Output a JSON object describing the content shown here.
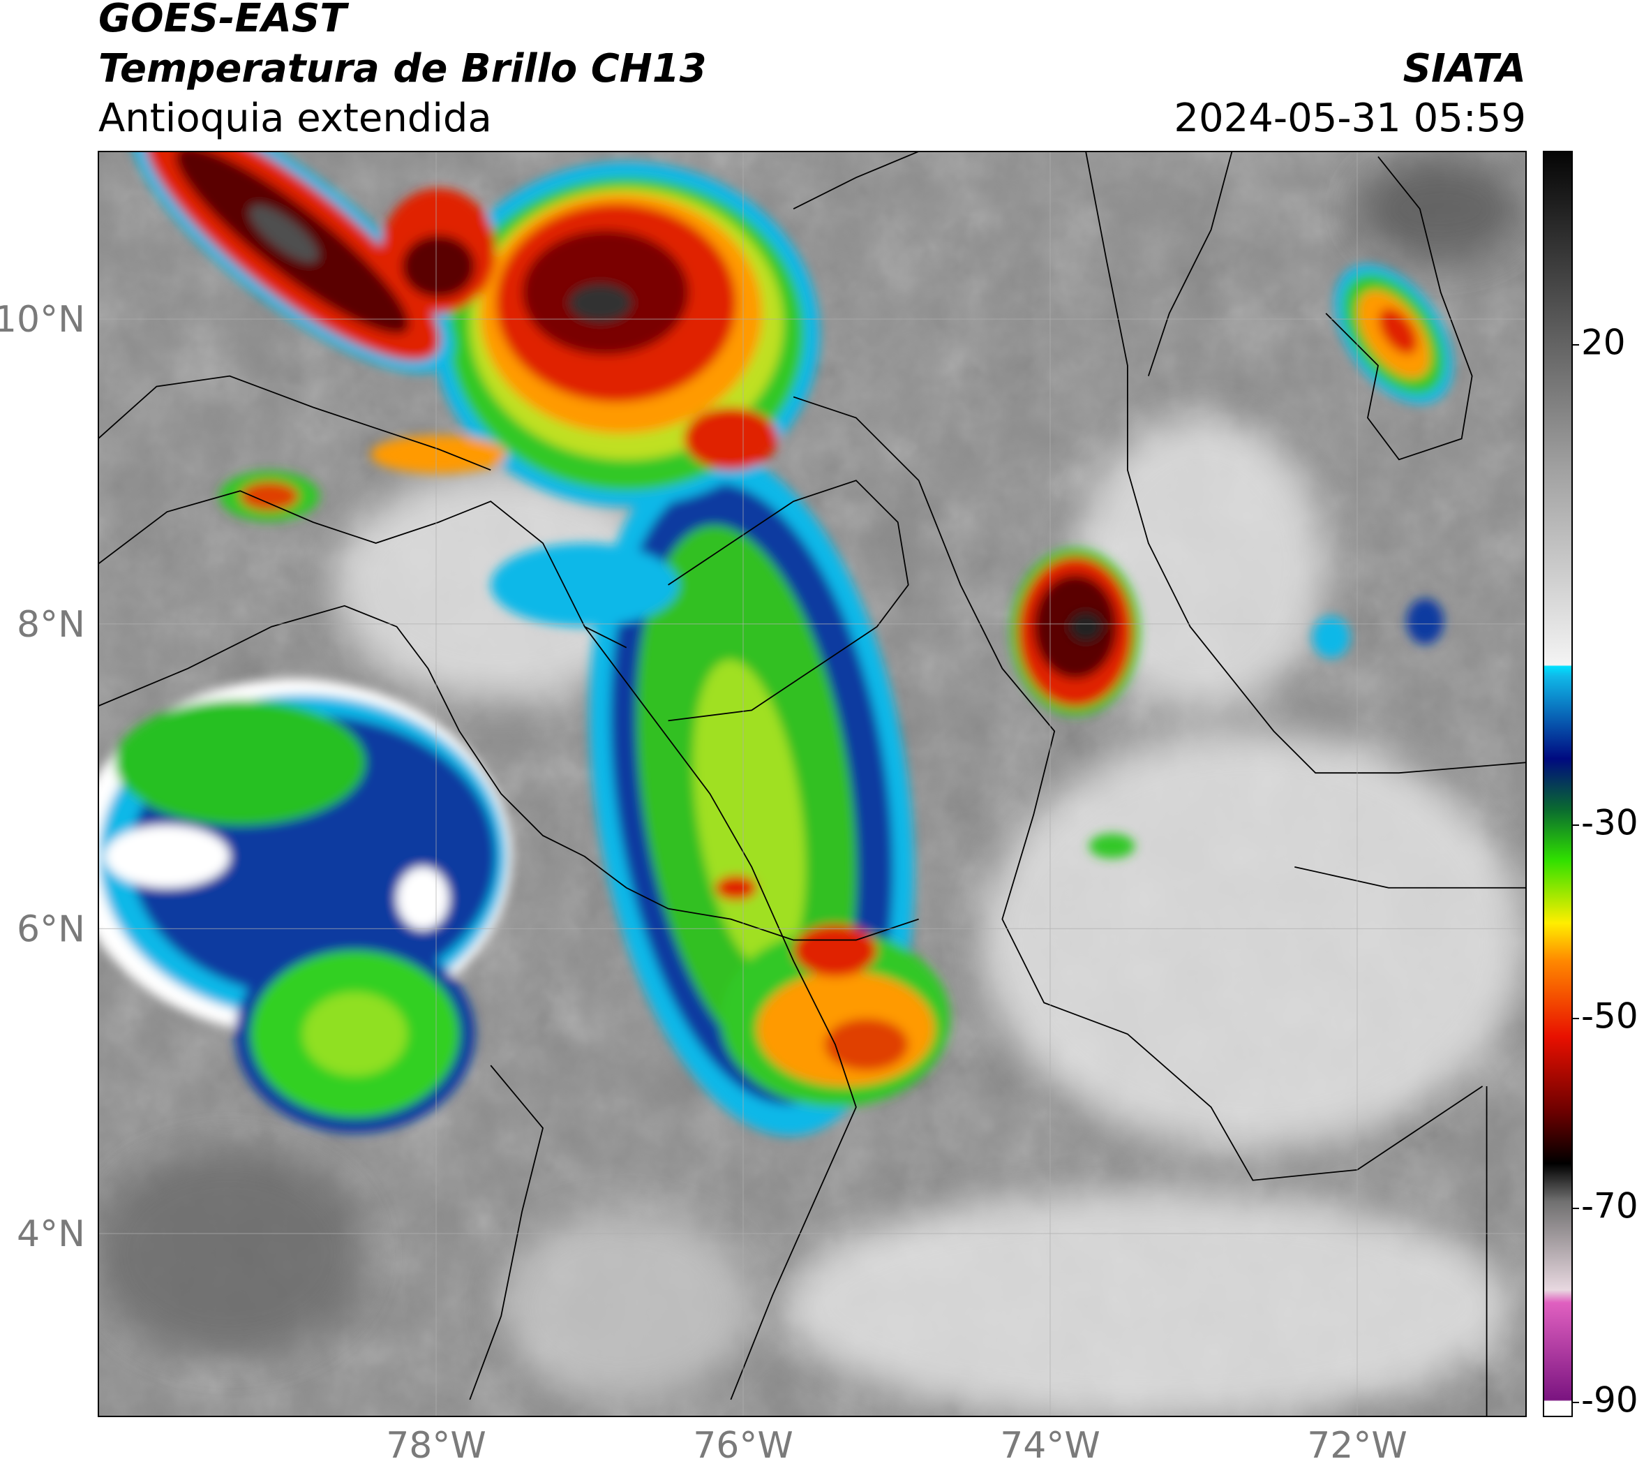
{
  "map": {
    "title": "GOES-EAST",
    "subtitle": "Temperatura de Brillo CH13",
    "region": "Antioquia extendida",
    "source": "SIATA",
    "datetime": "2024-05-31 05:59",
    "xlim": [
      -80.2,
      -70.9
    ],
    "ylim": [
      2.8,
      11.1
    ],
    "xticks": [
      {
        "value": -78,
        "label": "78°W"
      },
      {
        "value": -76,
        "label": "76°W"
      },
      {
        "value": -74,
        "label": "74°W"
      },
      {
        "value": -72,
        "label": "72°W"
      }
    ],
    "yticks": [
      {
        "value": 10,
        "label": "10°N"
      },
      {
        "value": 8,
        "label": "8°N"
      },
      {
        "value": 6,
        "label": "6°N"
      },
      {
        "value": 4,
        "label": "4°N"
      }
    ],
    "colorbar_ticks": [
      20,
      -30,
      -50,
      -70,
      -90
    ],
    "grid": true
  }
}
